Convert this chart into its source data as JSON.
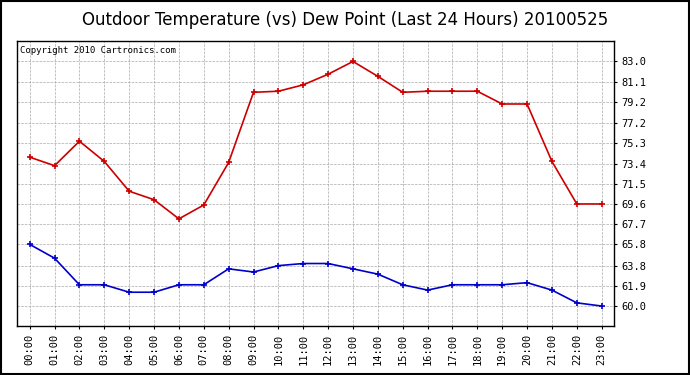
{
  "title": "Outdoor Temperature (vs) Dew Point (Last 24 Hours) 20100525",
  "copyright": "Copyright 2010 Cartronics.com",
  "x_labels": [
    "00:00",
    "01:00",
    "02:00",
    "03:00",
    "04:00",
    "05:00",
    "06:00",
    "07:00",
    "08:00",
    "09:00",
    "10:00",
    "11:00",
    "12:00",
    "13:00",
    "14:00",
    "15:00",
    "16:00",
    "17:00",
    "18:00",
    "19:00",
    "20:00",
    "21:00",
    "22:00",
    "23:00"
  ],
  "temp_data": [
    74.0,
    73.2,
    75.5,
    73.6,
    70.8,
    70.0,
    68.2,
    69.5,
    73.5,
    80.1,
    80.2,
    80.8,
    81.8,
    83.0,
    81.6,
    80.1,
    80.2,
    80.2,
    80.2,
    79.0,
    79.0,
    73.6,
    69.6,
    69.6
  ],
  "dew_data": [
    65.8,
    64.5,
    62.0,
    62.0,
    61.3,
    61.3,
    62.0,
    62.0,
    63.5,
    63.2,
    63.8,
    64.0,
    64.0,
    63.5,
    63.0,
    62.0,
    61.5,
    62.0,
    62.0,
    62.0,
    62.2,
    61.5,
    60.3,
    60.0
  ],
  "temp_color": "#cc0000",
  "dew_color": "#0000cc",
  "bg_color": "#ffffff",
  "grid_color": "#aaaaaa",
  "ylim_min": 58.1,
  "ylim_max": 84.9,
  "yticks": [
    60.0,
    61.9,
    63.8,
    65.8,
    67.7,
    69.6,
    71.5,
    73.4,
    75.3,
    77.2,
    79.2,
    81.1,
    83.0
  ],
  "title_fontsize": 12,
  "copyright_fontsize": 6.5,
  "tick_fontsize": 7.5
}
